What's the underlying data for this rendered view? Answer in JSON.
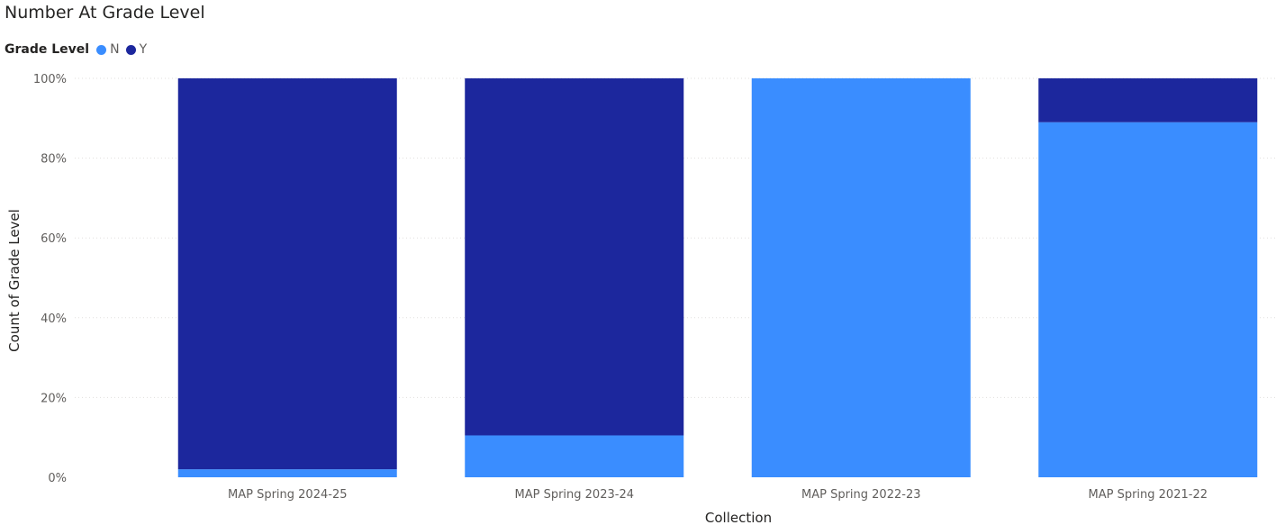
{
  "visual": {
    "title": "Number At Grade Level"
  },
  "legend": {
    "title": "Grade Level",
    "items": [
      {
        "label": "N",
        "color": "#3A8DFF"
      },
      {
        "label": "Y",
        "color": "#1C279D"
      }
    ]
  },
  "chart_data": {
    "type": "bar",
    "stacked": "percent",
    "title": "Number At Grade Level",
    "xlabel": "Collection",
    "ylabel": "Count of Grade Level",
    "categories": [
      "MAP Spring 2024-25",
      "MAP Spring 2023-24",
      "MAP Spring 2022-23",
      "MAP Spring 2021-22"
    ],
    "series": [
      {
        "name": "N",
        "color": "#3A8DFF",
        "values": [
          2,
          10.5,
          100,
          89
        ]
      },
      {
        "name": "Y",
        "color": "#1C279D",
        "values": [
          98,
          89.5,
          0,
          11
        ]
      }
    ],
    "ylim": [
      0,
      100
    ],
    "yticks": [
      "0%",
      "20%",
      "40%",
      "60%",
      "80%",
      "100%"
    ],
    "grid": true,
    "legend_position": "top-left"
  }
}
